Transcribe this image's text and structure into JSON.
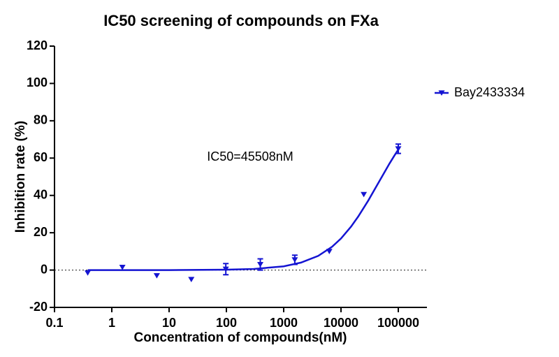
{
  "chart_data": {
    "type": "scatter",
    "title": "IC50 screening of compounds on FXa",
    "x_label": "Concentration of compounds(nM)",
    "y_label": "Inhibition rate (%)",
    "annotation": "IC50=45508nM",
    "xscale": "log",
    "xlim": [
      0.1,
      316228
    ],
    "xticks": [
      0.1,
      1,
      10,
      100,
      1000,
      10000,
      100000
    ],
    "ylim": [
      -20,
      120
    ],
    "yticks": [
      -20,
      0,
      20,
      40,
      60,
      80,
      100,
      120
    ],
    "zero_line": true,
    "legend": "right",
    "series": [
      {
        "name": "Bay2433334",
        "color": "#1414d2",
        "x": [
          0.38,
          1.53,
          6.1,
          24.4,
          97.7,
          390.6,
          1562.5,
          6250,
          25000,
          100000
        ],
        "values": [
          -1.5,
          1.5,
          -3,
          -5,
          0.5,
          3,
          5.5,
          10,
          40.5,
          65
        ],
        "errors": [
          null,
          null,
          null,
          null,
          3,
          3,
          2.5,
          null,
          null,
          2.5
        ],
        "fit": {
          "x": [
            0.38,
            1,
            10,
            100,
            300,
            1000,
            2000,
            4000,
            7000,
            10000,
            15000,
            20000,
            30000,
            40000,
            55000,
            70000,
            85000,
            100000
          ],
          "values": [
            0,
            0,
            0,
            0.2,
            0.6,
            2,
            4,
            7.6,
            12.5,
            16.9,
            23.3,
            28.7,
            37.3,
            44,
            51.4,
            57,
            61.2,
            64.6
          ]
        }
      }
    ]
  }
}
